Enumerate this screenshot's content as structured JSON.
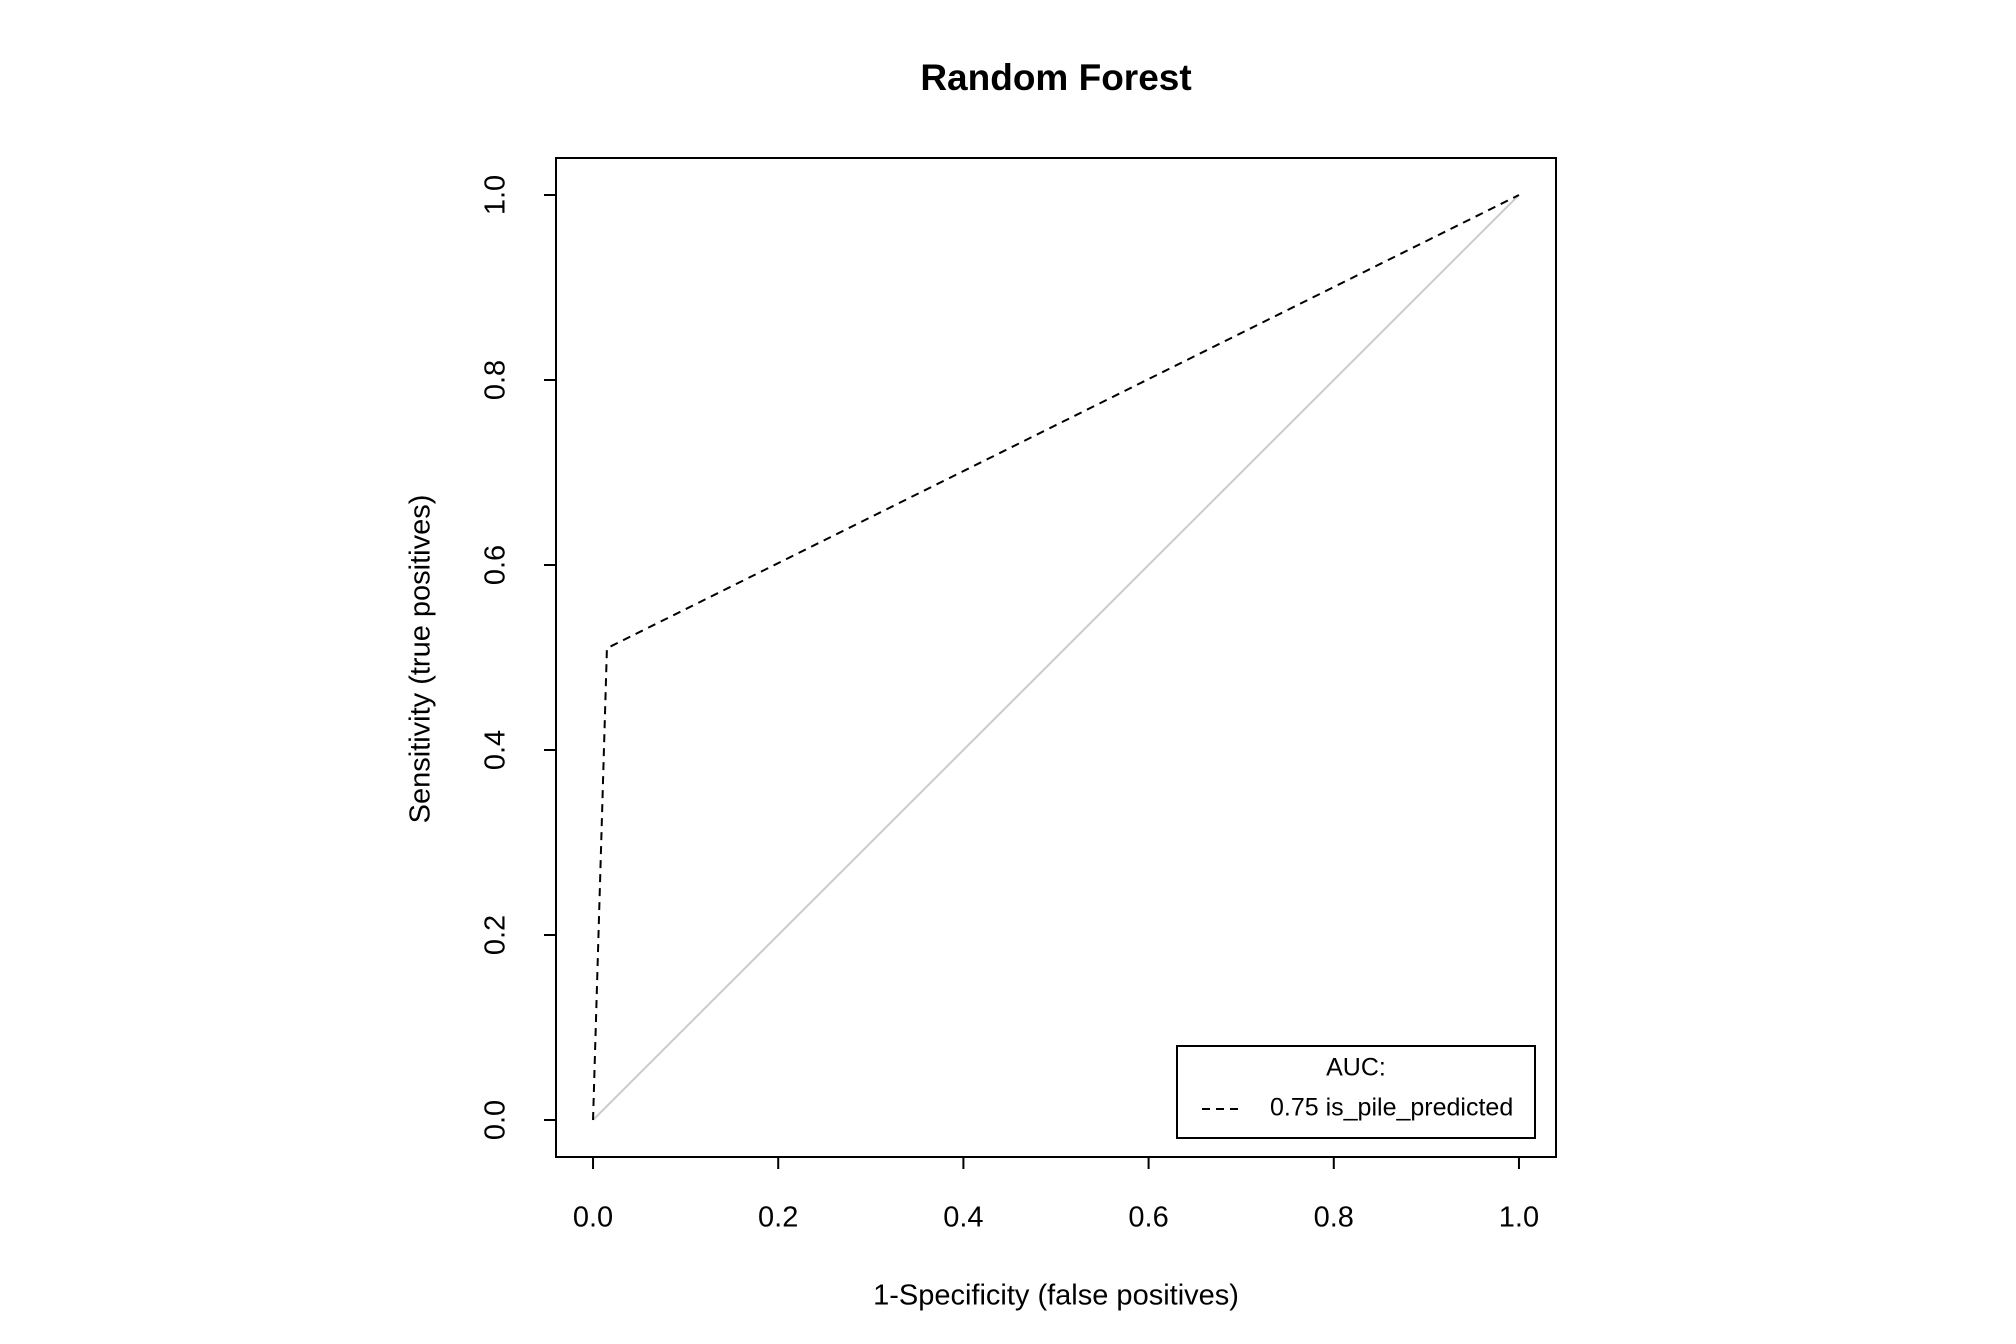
{
  "chart_data": {
    "type": "line",
    "title": "Random Forest",
    "x_label": "1-Specificity (false positives)",
    "y_label": "Sensitivity (true positives)",
    "x": [
      0,
      0.015,
      1
    ],
    "series": [
      {
        "name": "0.75 is_pile_predicted",
        "color": "#000000",
        "line_style": "dashed",
        "values": [
          0,
          0.51,
          1
        ]
      }
    ],
    "legend_title": "AUC:",
    "legend_position": "bottom-right",
    "reference_line_color": "#cccccc",
    "xlim": [
      -0.04,
      1.04
    ],
    "ylim": [
      -0.04,
      1.04
    ],
    "xticks": [
      {
        "value": 0,
        "label": "0.0"
      },
      0.2,
      0.4,
      0.6,
      0.8,
      {
        "value": 1,
        "label": "1.0"
      }
    ],
    "yticks": [
      {
        "value": 0,
        "label": "0.0"
      },
      0.2,
      0.4,
      0.6,
      0.8,
      {
        "value": 1,
        "label": "1.0"
      }
    ],
    "grid": false
  }
}
